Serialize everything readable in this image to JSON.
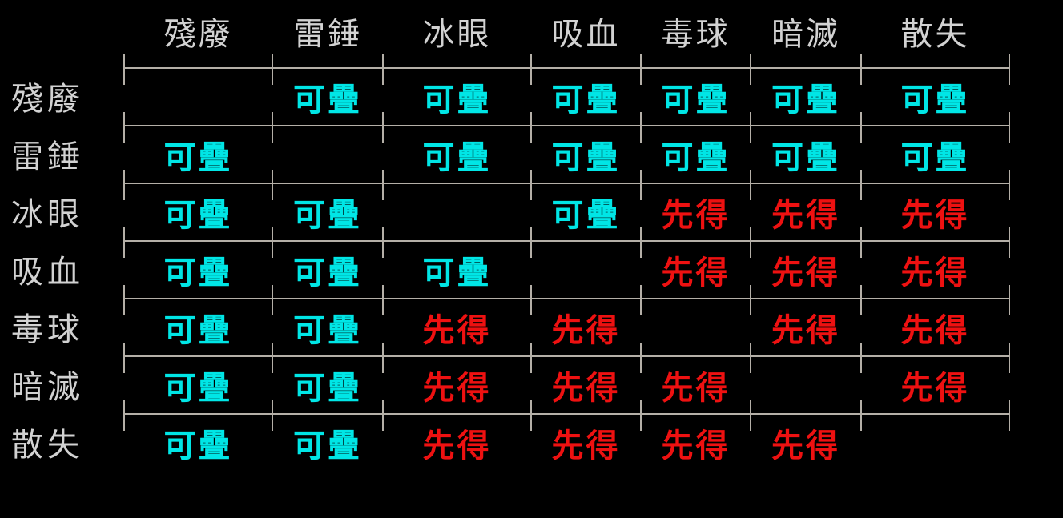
{
  "chart_data": {
    "type": "table",
    "columns": [
      "殘廢",
      "雷錘",
      "冰眼",
      "吸血",
      "毒球",
      "暗滅",
      "散失"
    ],
    "rows": [
      "殘廢",
      "雷錘",
      "冰眼",
      "吸血",
      "毒球",
      "暗滅",
      "散失"
    ],
    "matrix": [
      [
        "",
        "可疊",
        "可疊",
        "可疊",
        "可疊",
        "可疊",
        "可疊"
      ],
      [
        "可疊",
        "",
        "可疊",
        "可疊",
        "可疊",
        "可疊",
        "可疊"
      ],
      [
        "可疊",
        "可疊",
        "",
        "可疊",
        "先得",
        "先得",
        "先得"
      ],
      [
        "可疊",
        "可疊",
        "可疊",
        "",
        "先得",
        "先得",
        "先得"
      ],
      [
        "可疊",
        "可疊",
        "先得",
        "先得",
        "",
        "先得",
        "先得"
      ],
      [
        "可疊",
        "可疊",
        "先得",
        "先得",
        "先得",
        "",
        "先得"
      ],
      [
        "可疊",
        "可疊",
        "先得",
        "先得",
        "先得",
        "先得",
        ""
      ]
    ],
    "value_colors": {
      "可疊": "#00e6e6",
      "先得": "#ee1111"
    },
    "colors": {
      "background": "#000000",
      "header_text": "#d2d2d2",
      "grid_line": "#b4afa7"
    },
    "layout_hints": {
      "diagonal": "empty",
      "grid_style": "horizontal-rules-with-boundary-ticks",
      "legend": "none"
    }
  }
}
